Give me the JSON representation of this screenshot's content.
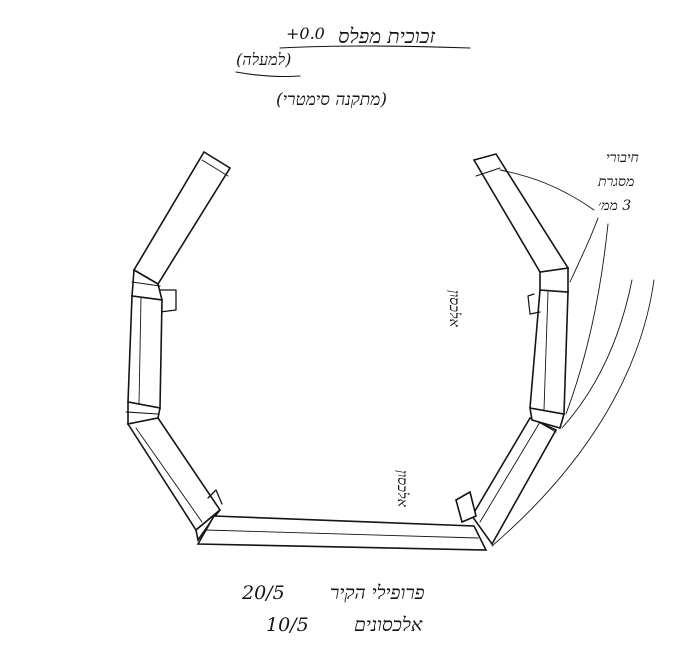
{
  "header": {
    "title_text": "זכוכית מפלס",
    "level_value": "+0.0",
    "subtitle_paren": "(למעלה)",
    "note_paren": "(מתקנה סימטרי)"
  },
  "labels": {
    "side_note": [
      "חיבורי",
      "מסגרת",
      "3 ממ׳"
    ],
    "right_upper_tag": "אלכסון",
    "right_lower_tag": "אלכסון"
  },
  "footer": {
    "row1_label": "פרופילי הקיר",
    "row1_value": "20/5",
    "row2_label": "אלכסונים",
    "row2_value": "10/5"
  }
}
